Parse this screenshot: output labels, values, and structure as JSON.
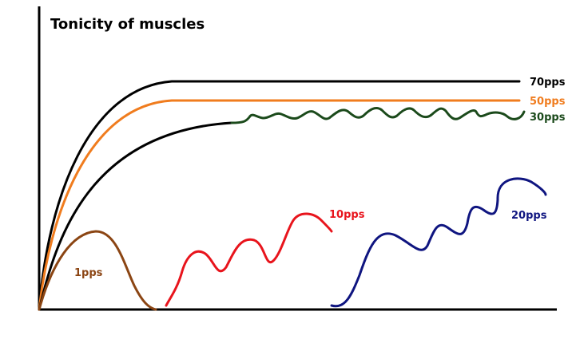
{
  "title": "Tonicity of muscles",
  "curves": [
    {
      "label": "70pps",
      "color": "#000000"
    },
    {
      "label": "50pps",
      "color": "#f07c1e"
    },
    {
      "label": "30pps",
      "color": "#1b4a1b",
      "rise_color": "#000000"
    },
    {
      "label": "20pps",
      "color": "#0f1580"
    },
    {
      "label": "10pps",
      "color": "#e8141c"
    },
    {
      "label": "1pps",
      "color": "#8b4513"
    }
  ],
  "axis_color": "#000000"
}
